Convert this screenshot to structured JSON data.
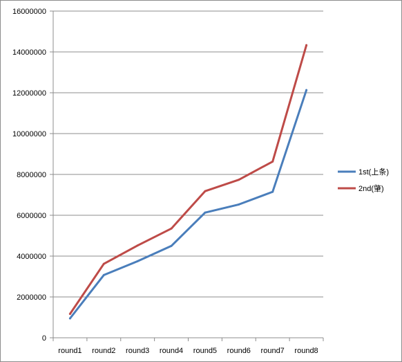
{
  "chart_data": {
    "type": "line",
    "title": "",
    "xlabel": "",
    "ylabel": "",
    "categories": [
      "round1",
      "round2",
      "round3",
      "round4",
      "round5",
      "round6",
      "round7",
      "round8"
    ],
    "series": [
      {
        "name": "1st(上条)",
        "color": "#4a7ebb",
        "values": [
          950000,
          3070000,
          3750000,
          4500000,
          6130000,
          6530000,
          7150000,
          12130000
        ]
      },
      {
        "name": "2nd(肇)",
        "color": "#be4b48",
        "values": [
          1170000,
          3620000,
          4520000,
          5350000,
          7180000,
          7740000,
          8630000,
          14330000
        ]
      }
    ],
    "ylim": [
      0,
      16000000
    ],
    "yticks": [
      "0",
      "2000000",
      "4000000",
      "6000000",
      "8000000",
      "10000000",
      "12000000",
      "14000000",
      "16000000"
    ],
    "grid": true,
    "legend": "right",
    "colors": {
      "gridline": "#8c8c8c",
      "axis": "#8c8c8c"
    }
  }
}
